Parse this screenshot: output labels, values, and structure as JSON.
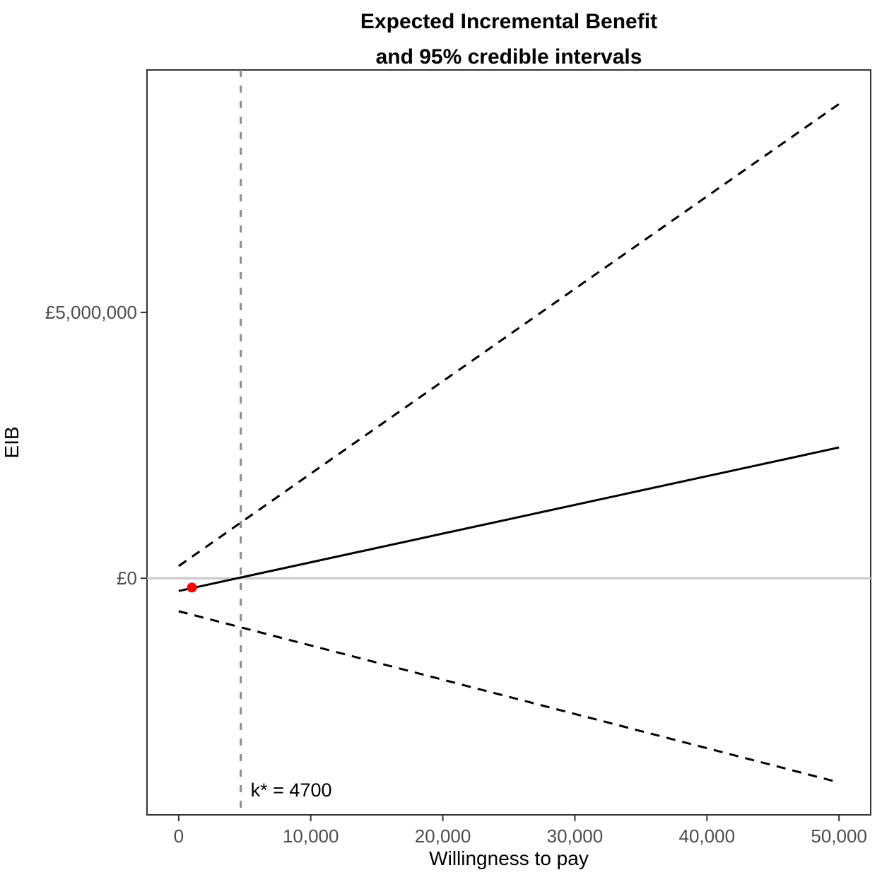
{
  "chart_data": {
    "type": "line",
    "title": "Expected Incremental Benefit and 95% credible intervals",
    "title_lines": [
      "Expected Incremental Benefit",
      "and 95% credible intervals"
    ],
    "xlabel": "Willingness to pay",
    "ylabel": "EIB",
    "xlim": [
      -2400,
      52400
    ],
    "ylim": [
      -4450000,
      9560000
    ],
    "grid": "off",
    "legend": "none",
    "x_ticks": [
      {
        "value": 0,
        "label": "0"
      },
      {
        "value": 10000,
        "label": "10,000"
      },
      {
        "value": 20000,
        "label": "20,000"
      },
      {
        "value": 30000,
        "label": "30,000"
      },
      {
        "value": 40000,
        "label": "40,000"
      },
      {
        "value": 50000,
        "label": "50,000"
      }
    ],
    "y_ticks": [
      {
        "value": 0,
        "label": "£0"
      },
      {
        "value": 5000000,
        "label": "£5,000,000"
      }
    ],
    "series": [
      {
        "key": "eib-line",
        "name": "EIB",
        "style": "solid",
        "color": "#000000",
        "x": [
          0,
          50000
        ],
        "y": [
          -240000,
          2460000
        ]
      },
      {
        "key": "upper-ci-line",
        "name": "upper 95% credible interval",
        "style": "dashed",
        "color": "#000000",
        "x": [
          0,
          50000
        ],
        "y": [
          230000,
          8920000
        ]
      },
      {
        "key": "lower-ci-line",
        "name": "lower 95% credible interval",
        "style": "dashed",
        "color": "#000000",
        "x": [
          0,
          50000
        ],
        "y": [
          -620000,
          -3840000
        ]
      }
    ],
    "reference_lines": {
      "horizontal_zero": {
        "y": 0,
        "color": "#c8c8c8",
        "style": "solid"
      },
      "vertical_kstar": {
        "x": 4700,
        "color": "#8c8c8c",
        "style": "dashed",
        "label": "k* = 4700"
      }
    },
    "highlight_point": {
      "x": 1000,
      "y": -175000,
      "color": "#ff0000",
      "radius": 7
    }
  }
}
